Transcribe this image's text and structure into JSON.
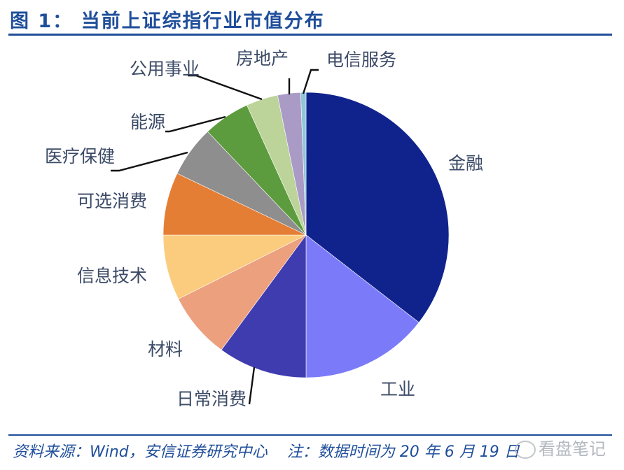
{
  "title": "图 1：  当前上证综指行业市值分布",
  "footer": {
    "source": "资料来源：Wind，安信证券研究中心",
    "note": "注：数据时间为 20 年 6 月 19 日"
  },
  "watermark": "看盘笔记",
  "chart_data": {
    "type": "pie",
    "title": "当前上证综指行业市值分布",
    "start_angle": "12 o'clock, clockwise",
    "legend": "none (leader-line labels)",
    "categories": [
      "金融",
      "工业",
      "日常消费",
      "材料",
      "信息技术",
      "可选消费",
      "医疗保健",
      "能源",
      "公用事业",
      "房地产",
      "电信服务"
    ],
    "values": [
      35.5,
      14.5,
      10.1,
      7.5,
      7.4,
      7.1,
      5.8,
      5.3,
      3.6,
      2.6,
      0.6
    ],
    "unit": "% (estimated from slice angles)",
    "colors": [
      "#10238c",
      "#7b7bfa",
      "#3f3cb0",
      "#eca07e",
      "#fbcc7e",
      "#e57e35",
      "#8e8e8e",
      "#5d9c3e",
      "#bcd39a",
      "#a99bc5",
      "#8fc6d8"
    ]
  },
  "labels": {
    "jinrong": "金融",
    "gongye": "工业",
    "richang": "日常消费",
    "cailiao": "材料",
    "xinxi": "信息技术",
    "kexuan": "可选消费",
    "yiliao": "医疗保健",
    "nengyuan": "能源",
    "gongyong": "公用事业",
    "fangdichan": "房地产",
    "dianxin": "电信服务"
  }
}
